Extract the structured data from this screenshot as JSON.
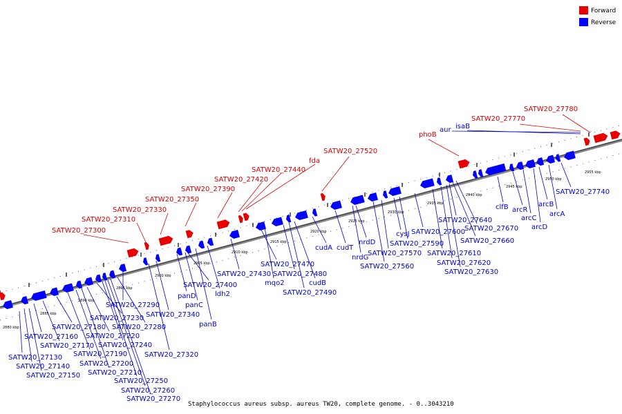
{
  "legend": [
    {
      "label": "Forward",
      "color": "#e80000"
    },
    {
      "label": "Reverse",
      "color": "#0000ff"
    }
  ],
  "caption": "Staphylococcus aureus subsp. aureus TW20, complete genome. - 0..3043210",
  "ticks": [
    "2880 kbp",
    "2885 kbp",
    "2890 kbp",
    "2895 kbp",
    "2900 kbp",
    "2905 kbp",
    "2910 kbp",
    "2915 kbp",
    "2920 kbp",
    "2925 kbp",
    "2930 kbp",
    "2935 kbp",
    "2940 kbp",
    "2945 kbp",
    "2950 kbp",
    "2955 kbp"
  ],
  "forward_labels": [
    "SATW20_27300",
    "SATW20_27310",
    "SATW20_27330",
    "SATW20_27350",
    "SATW20_27390",
    "SATW20_27420",
    "SATW20_27440",
    "fda",
    "SATW20_27520",
    "phoB",
    "SATW20_27770",
    "SATW20_27780"
  ],
  "reverse_labels": [
    "aur",
    "isaB",
    "SATW20_27130",
    "SATW20_27140",
    "SATW20_27150",
    "SATW20_27160",
    "SATW20_27170",
    "SATW20_27180",
    "SATW20_27190",
    "SATW20_27200",
    "SATW20_27210",
    "SATW20_27220",
    "SATW20_27230",
    "SATW20_27240",
    "SATW20_27250",
    "SATW20_27260",
    "SATW20_27270",
    "SATW20_27280",
    "SATW20_27290",
    "SATW20_27320",
    "SATW20_27340",
    "panD",
    "panC",
    "panB",
    "SATW20_27400",
    "ldh2",
    "SATW20_27430",
    "SATW20_27470",
    "mqo2",
    "SATW20_27480",
    "cudB",
    "SATW20_27490",
    "cudA",
    "cudT",
    "nrdD",
    "nrdG",
    "SATW20_27560",
    "SATW20_27570",
    "cysJ",
    "SATW20_27590",
    "SATW20_27600",
    "SATW20_27610",
    "SATW20_27620",
    "SATW20_27630",
    "SATW20_27640",
    "SATW20_27670",
    "SATW20_27660",
    "clfB",
    "arcR",
    "arcC",
    "arcB",
    "arcD",
    "arcA",
    "SATW20_27740"
  ]
}
